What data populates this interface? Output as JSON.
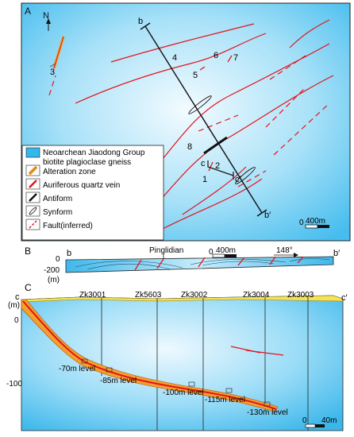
{
  "panels": {
    "a": {
      "letter": "A",
      "north": "N"
    },
    "b": {
      "letter": "B"
    },
    "c": {
      "letter": "C"
    }
  },
  "map_a": {
    "site_numbers": [
      "1",
      "2",
      "3",
      "4",
      "5",
      "6",
      "7",
      "8"
    ],
    "section_b_start": "b",
    "section_b_end": "b′",
    "section_c_start": "c",
    "section_c_end": "c′",
    "scale_zero": "0",
    "scale_label": "400m"
  },
  "legend": {
    "gneiss_line1": "Neoarchean Jiaodong Group",
    "gneiss_line2": "biotite plagioclase gneiss",
    "alteration": "Alteration zone",
    "vein": "Auriferous quartz vein",
    "antiform": "Antiform",
    "synform": "Synform",
    "fault": "Fault(inferred)"
  },
  "section_b": {
    "start": "b",
    "end": "b′",
    "place": "Pinglidian",
    "y_zero": "0",
    "y_minus": "-200",
    "y_unit": "(m)",
    "scale_zero": "0",
    "scale_label": "400m",
    "azimuth": "148°"
  },
  "section_c": {
    "start": "c",
    "end": "c′",
    "y_unit": "(m)",
    "y_zero": "0",
    "y_minus": "-100",
    "boreholes": [
      "Zk3001",
      "Zk5603",
      "Zk3002",
      "Zk3004",
      "Zk3003"
    ],
    "levels": [
      "-70m level",
      "-85m level",
      "-100m level",
      "-115m level",
      "-130m level"
    ],
    "scale_zero": "0",
    "scale_label": "40m"
  },
  "colors": {
    "gneiss": "#33b8ec",
    "gneiss_light": "#dff3fc",
    "vein": "#e3141b",
    "alteration": "#f2a12b",
    "surface": "#f3e25a"
  }
}
